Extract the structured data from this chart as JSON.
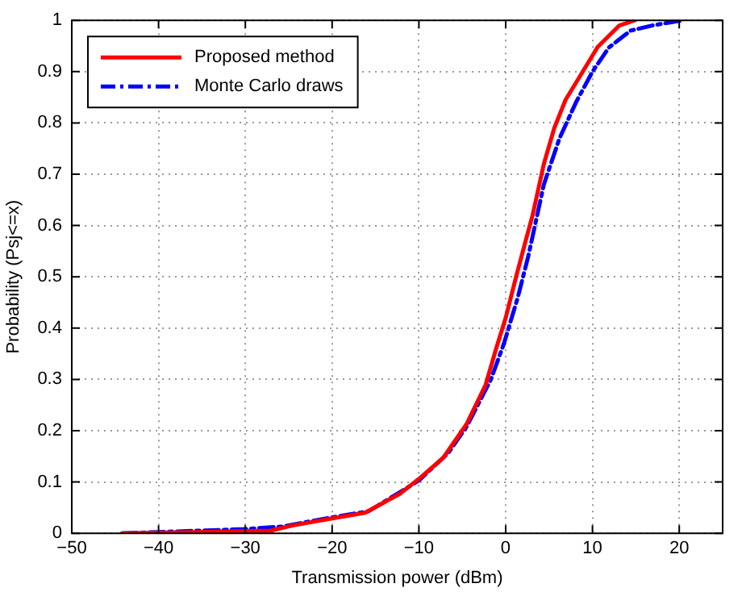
{
  "chart_data": {
    "type": "line",
    "xlabel": "Transmission power (dBm)",
    "ylabel": "Probability (Psj<=x)",
    "xlim": [
      -50,
      25
    ],
    "xticks": [
      {
        "value": -50,
        "label": "−50"
      },
      {
        "value": -40,
        "label": "−40"
      },
      {
        "value": -30,
        "label": "−30"
      },
      {
        "value": -20,
        "label": "−20"
      },
      {
        "value": -10,
        "label": "−10"
      },
      0,
      10,
      20
    ],
    "ylim": [
      0,
      1
    ],
    "yticks": [
      0,
      0.1,
      0.2,
      0.3,
      0.4,
      0.5,
      0.6,
      0.7,
      0.8,
      0.9,
      1
    ],
    "grid": true,
    "legend": "top left",
    "marker": "none",
    "series": [
      {
        "name": "Proposed method",
        "color": "#ff0000",
        "line_style": "solid",
        "x": [
          -44.2,
          -27.1,
          -24.6,
          -20,
          -16.2,
          -12.2,
          -10,
          -7.2,
          -4.5,
          -2.3,
          -1.1,
          0,
          1.2,
          2.3,
          3.1,
          4.4,
          5.6,
          6.9,
          8.7,
          10.6,
          13.1,
          14.9
        ],
        "values": [
          0,
          0.005,
          0.015,
          0.029,
          0.04,
          0.077,
          0.106,
          0.147,
          0.213,
          0.29,
          0.36,
          0.42,
          0.5,
          0.57,
          0.62,
          0.72,
          0.79,
          0.845,
          0.895,
          0.948,
          0.99,
          1
        ]
      },
      {
        "name": "Monte Carlo draws",
        "color": "#0000ff",
        "line_style": "dashdot",
        "x": [
          -44.2,
          -30.2,
          -25.8,
          -20,
          -15.8,
          -12.2,
          -10,
          -6.6,
          -4.5,
          -1.7,
          -0.2,
          1.4,
          2.6,
          4.4,
          6.2,
          8.1,
          10,
          11.9,
          14.4,
          16.9,
          20.3
        ],
        "values": [
          0,
          0.008,
          0.013,
          0.031,
          0.043,
          0.08,
          0.103,
          0.157,
          0.208,
          0.3,
          0.37,
          0.46,
          0.54,
          0.68,
          0.77,
          0.84,
          0.9,
          0.947,
          0.98,
          0.99,
          1
        ]
      }
    ]
  }
}
